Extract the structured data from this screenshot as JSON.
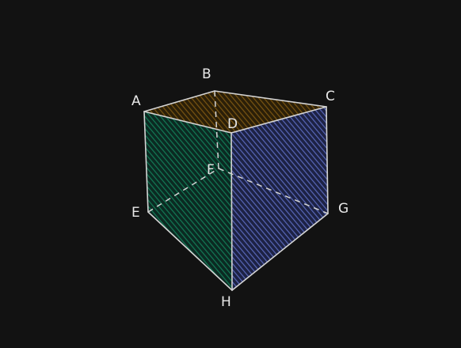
{
  "diagram": {
    "vertices": {
      "A": "A",
      "B": "B",
      "C": "C",
      "D": "D",
      "E": "E",
      "F": "F",
      "G": "G",
      "H": "H"
    },
    "faces": [
      {
        "name": "top-face",
        "vertices": "ABCD",
        "color": "#5a3d0c"
      },
      {
        "name": "left-face",
        "vertices": "ADHE",
        "color": "#0f5a42"
      },
      {
        "name": "right-face",
        "vertices": "DCGH",
        "color": "#4a5aa8"
      }
    ],
    "edge_color": "#d4d4d4",
    "background": "#121212"
  }
}
